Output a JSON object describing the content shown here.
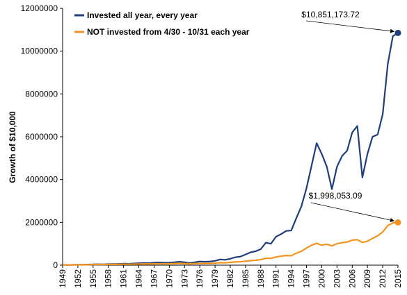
{
  "chart_data": {
    "type": "line",
    "title": "",
    "xlabel": "",
    "ylabel": "Growth of $10,000",
    "ylim": [
      0,
      12000000
    ],
    "xlim": [
      1949,
      2015
    ],
    "y_ticks": [
      "0",
      "2000000",
      "4000000",
      "6000000",
      "8000000",
      "10000000",
      "12000000"
    ],
    "x_ticks": [
      "1949",
      "1952",
      "1955",
      "1958",
      "1961",
      "1964",
      "1967",
      "1970",
      "1973",
      "1976",
      "1979",
      "1982",
      "1985",
      "1988",
      "1991",
      "1994",
      "1997",
      "2000",
      "2003",
      "2006",
      "2009",
      "2012",
      "2015"
    ],
    "grid": false,
    "legend_placement": "top-left",
    "series": [
      {
        "name": "Invested all year, every year",
        "color": "#1f3d7a",
        "x": [
          1949,
          1950,
          1951,
          1952,
          1953,
          1954,
          1955,
          1956,
          1957,
          1958,
          1959,
          1960,
          1961,
          1962,
          1963,
          1964,
          1965,
          1966,
          1967,
          1968,
          1969,
          1970,
          1971,
          1972,
          1973,
          1974,
          1975,
          1976,
          1977,
          1978,
          1979,
          1980,
          1981,
          1982,
          1983,
          1984,
          1985,
          1986,
          1987,
          1988,
          1989,
          1990,
          1991,
          1992,
          1993,
          1994,
          1995,
          1996,
          1997,
          1998,
          1999,
          2000,
          2001,
          2002,
          2003,
          2004,
          2005,
          2006,
          2007,
          2008,
          2009,
          2010,
          2011,
          2012,
          2013,
          2014,
          2015
        ],
        "values": [
          10000,
          13000,
          16000,
          19000,
          19000,
          28000,
          37000,
          40000,
          36000,
          50000,
          55000,
          55000,
          70000,
          63000,
          77000,
          90000,
          100000,
          95000,
          115000,
          125000,
          115000,
          118000,
          135000,
          160000,
          135000,
          100000,
          135000,
          170000,
          160000,
          170000,
          200000,
          265000,
          250000,
          300000,
          370000,
          400000,
          500000,
          600000,
          650000,
          750000,
          1050000,
          1000000,
          1330000,
          1450000,
          1600000,
          1620000,
          2200000,
          2750000,
          3600000,
          4650000,
          5700000,
          5200000,
          4600000,
          3550000,
          4600000,
          5100000,
          5350000,
          6200000,
          6500000,
          4100000,
          5200000,
          6000000,
          6100000,
          7050000,
          9400000,
          10700000,
          10851173.72
        ]
      },
      {
        "name": "NOT invested from 4/30 - 10/31 each year",
        "color": "#f39420",
        "x": [
          1949,
          1950,
          1951,
          1952,
          1953,
          1954,
          1955,
          1956,
          1957,
          1958,
          1959,
          1960,
          1961,
          1962,
          1963,
          1964,
          1965,
          1966,
          1967,
          1968,
          1969,
          1970,
          1971,
          1972,
          1973,
          1974,
          1975,
          1976,
          1977,
          1978,
          1979,
          1980,
          1981,
          1982,
          1983,
          1984,
          1985,
          1986,
          1987,
          1988,
          1989,
          1990,
          1991,
          1992,
          1993,
          1994,
          1995,
          1996,
          1997,
          1998,
          1999,
          2000,
          2001,
          2002,
          2003,
          2004,
          2005,
          2006,
          2007,
          2008,
          2009,
          2010,
          2011,
          2012,
          2013,
          2014,
          2015
        ],
        "values": [
          10000,
          12000,
          14000,
          16000,
          17000,
          22000,
          27000,
          29000,
          28000,
          34000,
          37000,
          38000,
          44000,
          42000,
          48000,
          53000,
          58000,
          56000,
          63000,
          67000,
          64000,
          66000,
          72000,
          80000,
          72000,
          60000,
          72000,
          82000,
          80000,
          85000,
          95000,
          115000,
          112000,
          130000,
          150000,
          160000,
          185000,
          210000,
          230000,
          260000,
          320000,
          320000,
          380000,
          420000,
          450000,
          440000,
          560000,
          650000,
          800000,
          930000,
          1020000,
          930000,
          980000,
          900000,
          1000000,
          1050000,
          1080000,
          1170000,
          1190000,
          1060000,
          1120000,
          1250000,
          1370000,
          1550000,
          1850000,
          1970000,
          1998053.09
        ]
      }
    ],
    "annotations": [
      {
        "text": "$10,851,173.72",
        "series": 0,
        "x": 2015,
        "y": 10851173.72
      },
      {
        "text": "$1,998,053.09",
        "series": 1,
        "x": 2015,
        "y": 1998053.09
      }
    ]
  }
}
